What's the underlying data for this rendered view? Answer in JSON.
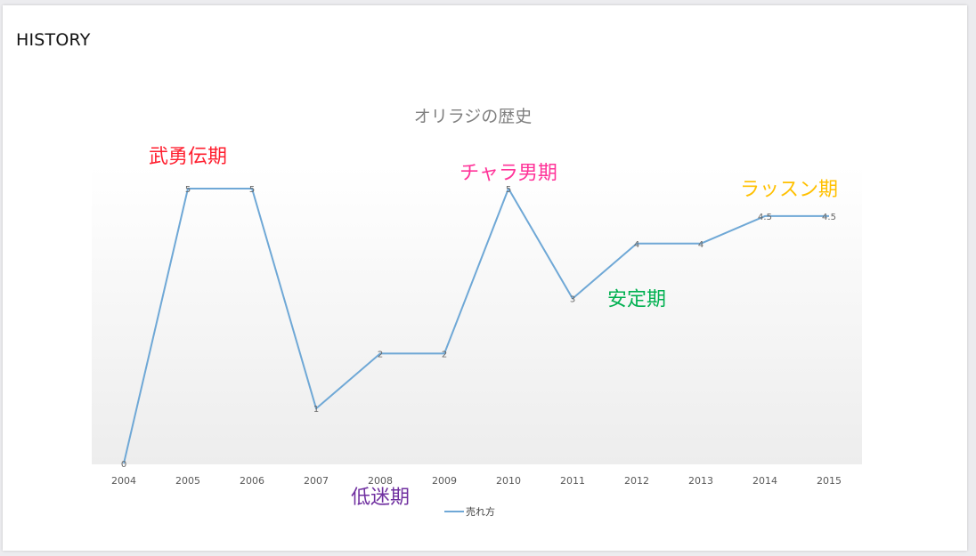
{
  "slide": {
    "title": "HISTORY"
  },
  "chart_data": {
    "type": "line",
    "title": "オリラジの歴史",
    "xlabel": "",
    "ylabel": "",
    "categories": [
      "2004",
      "2005",
      "2006",
      "2007",
      "2008",
      "2009",
      "2010",
      "2011",
      "2012",
      "2013",
      "2014",
      "2015"
    ],
    "series": [
      {
        "name": "売れ方",
        "values": [
          0,
          5,
          5,
          1,
          2,
          2,
          5,
          3,
          4,
          4,
          4.5,
          4.5
        ],
        "data_labels": [
          "0",
          "5",
          "5",
          "1",
          "2",
          "2",
          "5",
          "3",
          "4",
          "4",
          "4.5",
          "4.5"
        ],
        "color": "#6fa8d6"
      }
    ],
    "ylim": [
      0,
      5
    ],
    "grid": false,
    "legend": "bottom",
    "annotations": [
      {
        "text": "武勇伝期",
        "color": "#ff1f2f",
        "category": "2005",
        "y": 5.6
      },
      {
        "text": "低迷期",
        "color": "#7030a0",
        "category": "2008",
        "y": -0.6
      },
      {
        "text": "チャラ男期",
        "color": "#ff3399",
        "category": "2010",
        "y": 5.3
      },
      {
        "text": "安定期",
        "color": "#00b050",
        "category": "2012",
        "y": 3.0
      },
      {
        "text": "ラッスン期",
        "color": "#ffc000",
        "category": "2015",
        "y": 5.0
      }
    ]
  }
}
